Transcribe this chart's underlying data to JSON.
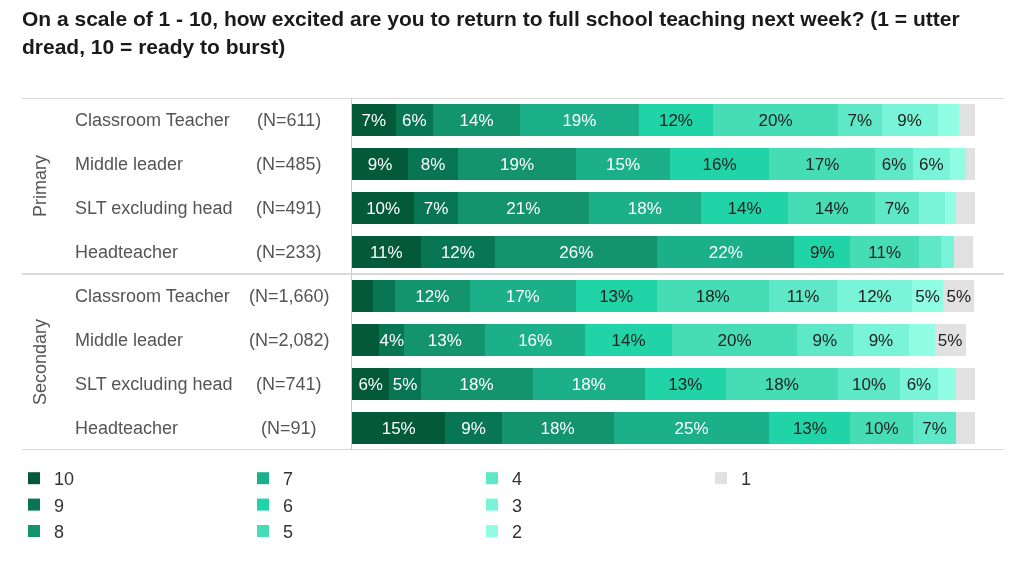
{
  "chart_data": {
    "type": "bar",
    "orientation": "horizontal",
    "stacked": true,
    "title": "On a scale of 1 - 10, how excited are you to return to full school teaching next week? (1 = utter dread, 10 = ready to burst)",
    "categories": [
      "Classroom Teacher",
      "Middle leader",
      "SLT excluding head",
      "Headteacher",
      "Classroom Teacher",
      "Middle leader",
      "SLT excluding head",
      "Headteacher"
    ],
    "y2_categories": [
      "(N=611)",
      "(N=485)",
      "(N=491)",
      "(N=233)",
      "(N=1,660)",
      "(N=2,082)",
      "(N=741)",
      "(N=91)"
    ],
    "annotations": [
      "Primary",
      "Secondary"
    ],
    "xlim": [
      0,
      100
    ],
    "tick_labels": "y",
    "legend": "bottom",
    "series": [
      {
        "name": "10",
        "color": "#035a3a",
        "values": [
          7,
          9,
          10,
          11,
          3.3,
          4.4,
          6,
          15
        ],
        "value_labels": [
          "7%",
          "9%",
          "10%",
          "11%",
          null,
          null,
          "6%",
          "15%"
        ]
      },
      {
        "name": "9",
        "color": "#087553",
        "values": [
          6,
          8,
          7,
          12,
          3.6,
          4,
          5,
          9
        ],
        "value_labels": [
          "6%",
          "8%",
          "7%",
          "12%",
          null,
          "4%",
          "5%",
          "9%"
        ]
      },
      {
        "name": "8",
        "color": "#13946c",
        "values": [
          14,
          19,
          21,
          26,
          12,
          13,
          18,
          18
        ],
        "value_labels": [
          "14%",
          "19%",
          "21%",
          "26%",
          "12%",
          "13%",
          "18%",
          "18%"
        ]
      },
      {
        "name": "7",
        "color": "#1bb08a",
        "values": [
          19,
          15,
          18,
          22,
          17,
          16,
          18,
          25
        ],
        "value_labels": [
          "19%",
          "15%",
          "18%",
          "22%",
          "17%",
          "16%",
          "18%",
          "25%"
        ]
      },
      {
        "name": "6",
        "color": "#20d4a7",
        "values": [
          12,
          16,
          14,
          9,
          13,
          14,
          13,
          13
        ],
        "value_labels": [
          "12%",
          "16%",
          "14%",
          "9%",
          "13%",
          "14%",
          "13%",
          "13%"
        ]
      },
      {
        "name": "5",
        "color": "#45dcb6",
        "values": [
          20,
          17,
          14,
          11,
          18,
          20,
          18,
          10
        ],
        "value_labels": [
          "20%",
          "17%",
          "14%",
          "11%",
          "18%",
          "20%",
          "18%",
          "10%"
        ]
      },
      {
        "name": "4",
        "color": "#5ee8c7",
        "values": [
          7,
          6,
          7,
          3.6,
          11,
          9,
          10,
          7
        ],
        "value_labels": [
          "7%",
          "6%",
          "7%",
          null,
          "11%",
          "9%",
          "10%",
          "7%"
        ]
      },
      {
        "name": "3",
        "color": "#79f4d8",
        "values": [
          9,
          6,
          4.2,
          2,
          12,
          9,
          6,
          null
        ],
        "value_labels": [
          "9%",
          "6%",
          null,
          null,
          "12%",
          "9%",
          "6%",
          null
        ]
      },
      {
        "name": "2",
        "color": "#91fde5",
        "values": [
          3.5,
          2.5,
          1.8,
          null,
          5,
          4.1,
          3,
          null
        ],
        "value_labels": [
          null,
          null,
          null,
          null,
          "5%",
          null,
          null,
          null
        ]
      },
      {
        "name": "1",
        "color": "#e1e1e1",
        "values": [
          2.5,
          1.5,
          3,
          3,
          5,
          5,
          3,
          3
        ],
        "value_labels": [
          null,
          null,
          null,
          null,
          "5%",
          "5%",
          null,
          null
        ]
      }
    ]
  }
}
